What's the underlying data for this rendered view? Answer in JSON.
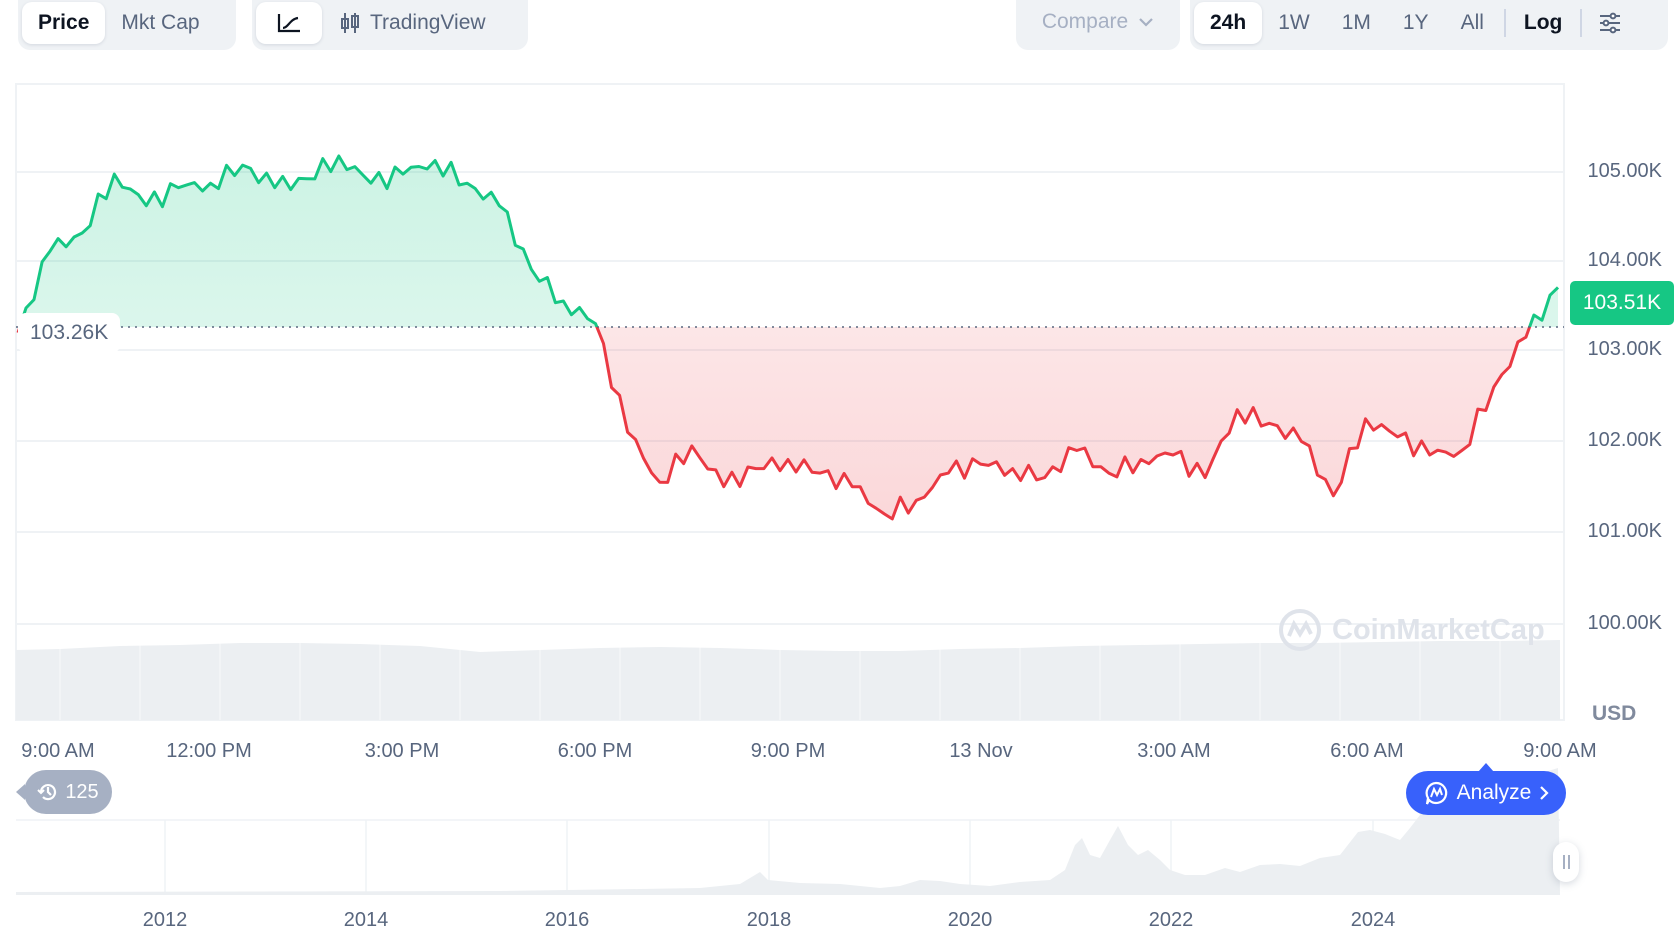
{
  "toolbar": {
    "metric_tabs": [
      {
        "label": "Price",
        "active": true
      },
      {
        "label": "Mkt Cap",
        "active": false
      }
    ],
    "chart_type_tabs": [
      {
        "icon": "line-chart-icon",
        "active": true
      },
      {
        "icon": "candlestick-icon",
        "label": "TradingView",
        "active": false
      }
    ],
    "compare_label": "Compare",
    "range_tabs": [
      {
        "label": "24h",
        "active": true
      },
      {
        "label": "1W"
      },
      {
        "label": "1M"
      },
      {
        "label": "1Y"
      },
      {
        "label": "All"
      }
    ],
    "log_label": "Log",
    "settings_icon": "sliders-icon"
  },
  "chart": {
    "open_price_label": "103.26K",
    "current_price_label": "103.51K",
    "currency_label": "USD",
    "watermark": "CoinMarketCap",
    "history_count": "125",
    "analyze_label": "Analyze",
    "colors": {
      "up": "#16c784",
      "down": "#ea3943",
      "up_fill": "#d8f4e6",
      "down_fill": "#fde3e5",
      "accent": "#3861fb",
      "grid": "#eff2f5",
      "volume": "#eceff2"
    }
  },
  "navigator": {
    "years": [
      "2012",
      "2014",
      "2016",
      "2018",
      "2020",
      "2022",
      "2024"
    ]
  },
  "chart_data": {
    "type": "line",
    "title": "",
    "xlabel": "",
    "ylabel": "USD",
    "x_ticks": [
      "9:00 AM",
      "12:00 PM",
      "3:00 PM",
      "6:00 PM",
      "9:00 PM",
      "13 Nov",
      "3:00 AM",
      "6:00 AM",
      "9:00 AM"
    ],
    "y_ticks": [
      "100.00K",
      "101.00K",
      "102.00K",
      "103.00K",
      "104.00K",
      "105.00K"
    ],
    "ylim": [
      99800,
      105900
    ],
    "baseline": 103260,
    "current": 103510,
    "grid": true,
    "legend": "none",
    "series": [
      {
        "name": "Price",
        "x_hours_from_start": [
          0,
          0.5,
          1,
          1.5,
          2,
          2.5,
          3,
          3.5,
          4,
          4.5,
          5,
          5.5,
          6,
          6.5,
          7,
          7.5,
          8,
          8.5,
          9,
          9.5,
          10,
          10.5,
          11,
          11.5,
          12,
          12.5,
          13,
          13.5,
          14,
          14.5,
          15,
          15.5,
          16,
          16.5,
          17,
          17.5,
          18,
          18.5,
          19,
          19.5,
          20,
          20.5,
          21,
          21.5,
          22,
          22.5,
          23,
          23.5,
          24
        ],
        "values": [
          103200,
          104100,
          104300,
          104950,
          104600,
          104800,
          104850,
          105050,
          104800,
          104900,
          105150,
          104850,
          104950,
          105100,
          104850,
          104600,
          103900,
          103550,
          103300,
          102100,
          101550,
          101950,
          101500,
          101700,
          101800,
          101650,
          101500,
          101200,
          101350,
          101650,
          101750,
          101700,
          101600,
          101900,
          101650,
          101800,
          101850,
          101600,
          102350,
          102200,
          102000,
          101400,
          102250,
          102050,
          101850,
          101900,
          102600,
          103150,
          103700
        ]
      }
    ],
    "volume_bars": "uniform light gray bars across full range",
    "navigator": {
      "type": "area",
      "x_ticks": [
        "2012",
        "2014",
        "2016",
        "2018",
        "2020",
        "2022",
        "2024"
      ],
      "description": "all-time BTC price area, rising steeply after 2020 and peaking near right edge"
    }
  }
}
